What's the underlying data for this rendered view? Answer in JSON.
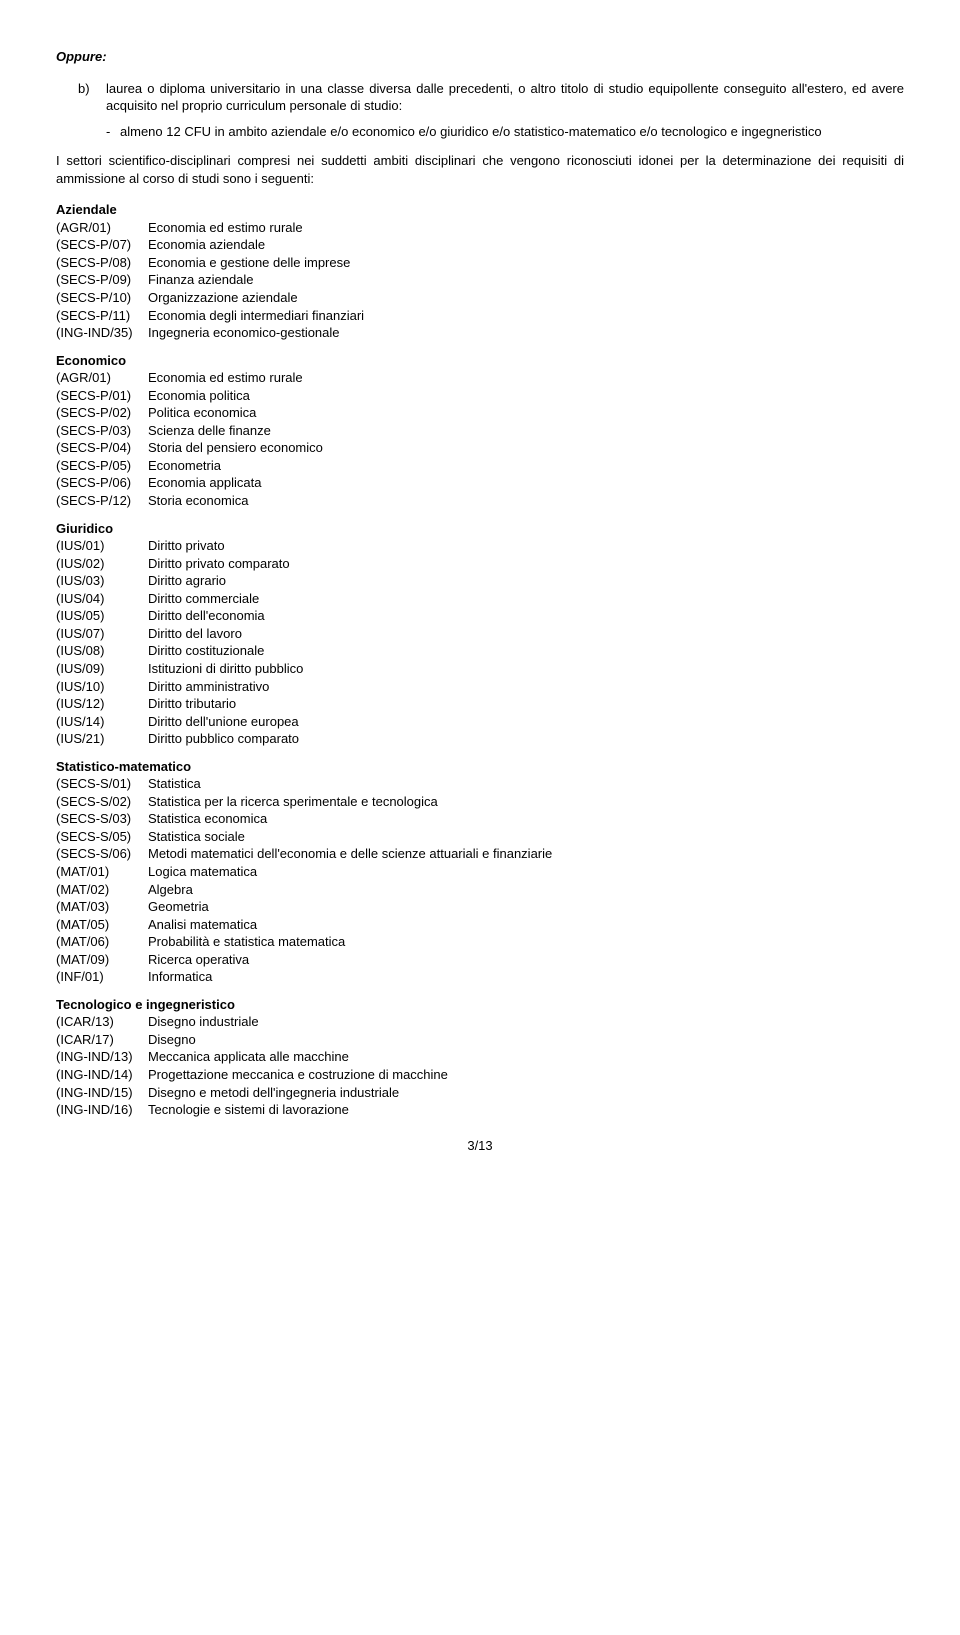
{
  "oppure": "Oppure:",
  "item_b_marker": "b)",
  "item_b_text": "laurea o diploma universitario in una classe diversa dalle precedenti, o altro titolo di studio equipollente conseguito all'estero, ed avere acquisito nel proprio curriculum personale di studio:",
  "dash_marker": "-",
  "dash_text": "almeno 12 CFU in ambito aziendale e/o economico e/o giuridico e/o statistico-matematico e/o tecnologico e ingegneristico",
  "intro": "I settori scientifico-disciplinari compresi nei suddetti ambiti disciplinari che vengono riconosciuti idonei per la determinazione dei requisiti di ammissione al corso di studi sono i seguenti:",
  "groups": {
    "aziendale": {
      "head": "Aziendale",
      "rows": [
        {
          "code": "(AGR/01)",
          "label": "Economia ed estimo rurale"
        },
        {
          "code": "(SECS-P/07)",
          "label": "Economia aziendale"
        },
        {
          "code": "(SECS-P/08)",
          "label": "Economia e gestione delle imprese"
        },
        {
          "code": "(SECS-P/09)",
          "label": "Finanza aziendale"
        },
        {
          "code": "(SECS-P/10)",
          "label": "Organizzazione aziendale"
        },
        {
          "code": "(SECS-P/11)",
          "label": "Economia degli intermediari finanziari"
        },
        {
          "code": "(ING-IND/35)",
          "label": "Ingegneria economico-gestionale"
        }
      ]
    },
    "economico": {
      "head": "Economico",
      "rows": [
        {
          "code": "(AGR/01)",
          "label": "Economia ed estimo rurale"
        },
        {
          "code": "(SECS-P/01)",
          "label": "Economia politica"
        },
        {
          "code": "(SECS-P/02)",
          "label": "Politica economica"
        },
        {
          "code": "(SECS-P/03)",
          "label": "Scienza delle finanze"
        },
        {
          "code": "(SECS-P/04)",
          "label": "Storia del pensiero economico"
        },
        {
          "code": "(SECS-P/05)",
          "label": "Econometria"
        },
        {
          "code": "(SECS-P/06)",
          "label": "Economia applicata"
        },
        {
          "code": "(SECS-P/12)",
          "label": "Storia economica"
        }
      ]
    },
    "giuridico": {
      "head": "Giuridico",
      "rows": [
        {
          "code": "(IUS/01)",
          "label": "Diritto privato"
        },
        {
          "code": "(IUS/02)",
          "label": "Diritto privato comparato"
        },
        {
          "code": "(IUS/03)",
          "label": "Diritto agrario"
        },
        {
          "code": "(IUS/04)",
          "label": "Diritto commerciale"
        },
        {
          "code": "(IUS/05)",
          "label": "Diritto dell'economia"
        },
        {
          "code": "(IUS/07)",
          "label": "Diritto del lavoro"
        },
        {
          "code": "(IUS/08)",
          "label": "Diritto costituzionale"
        },
        {
          "code": "(IUS/09)",
          "label": "Istituzioni di diritto pubblico"
        },
        {
          "code": "(IUS/10)",
          "label": "Diritto amministrativo"
        },
        {
          "code": "(IUS/12)",
          "label": "Diritto tributario"
        },
        {
          "code": "(IUS/14)",
          "label": "Diritto dell'unione europea"
        },
        {
          "code": "(IUS/21)",
          "label": "Diritto pubblico comparato"
        }
      ]
    },
    "statmat": {
      "head": "Statistico-matematico",
      "rows": [
        {
          "code": "(SECS-S/01)",
          "label": "Statistica"
        },
        {
          "code": "(SECS-S/02)",
          "label": "Statistica per la ricerca sperimentale e tecnologica"
        },
        {
          "code": "(SECS-S/03)",
          "label": "Statistica economica"
        },
        {
          "code": "(SECS-S/05)",
          "label": "Statistica sociale"
        },
        {
          "code": "(SECS-S/06)",
          "label": "Metodi matematici dell'economia e delle scienze attuariali e finanziarie"
        },
        {
          "code": "(MAT/01)",
          "label": "Logica matematica"
        },
        {
          "code": "(MAT/02)",
          "label": "Algebra"
        },
        {
          "code": "(MAT/03)",
          "label": "Geometria"
        },
        {
          "code": "(MAT/05)",
          "label": "Analisi matematica"
        },
        {
          "code": "(MAT/06)",
          "label": "Probabilità e statistica matematica"
        },
        {
          "code": "(MAT/09)",
          "label": "Ricerca operativa"
        },
        {
          "code": "(INF/01)",
          "label": "Informatica"
        }
      ]
    },
    "tecno": {
      "head": "Tecnologico e ingegneristico",
      "rows": [
        {
          "code": "(ICAR/13)",
          "label": "Disegno industriale"
        },
        {
          "code": "(ICAR/17)",
          "label": "Disegno"
        },
        {
          "code": "(ING-IND/13)",
          "label": "Meccanica applicata alle macchine"
        },
        {
          "code": "(ING-IND/14)",
          "label": "Progettazione meccanica  e costruzione di macchine"
        },
        {
          "code": "(ING-IND/15)",
          "label": "Disegno e metodi dell'ingegneria industriale"
        },
        {
          "code": "(ING-IND/16)",
          "label": "Tecnologie e sistemi di lavorazione"
        }
      ]
    }
  },
  "pagenum": "3/13"
}
